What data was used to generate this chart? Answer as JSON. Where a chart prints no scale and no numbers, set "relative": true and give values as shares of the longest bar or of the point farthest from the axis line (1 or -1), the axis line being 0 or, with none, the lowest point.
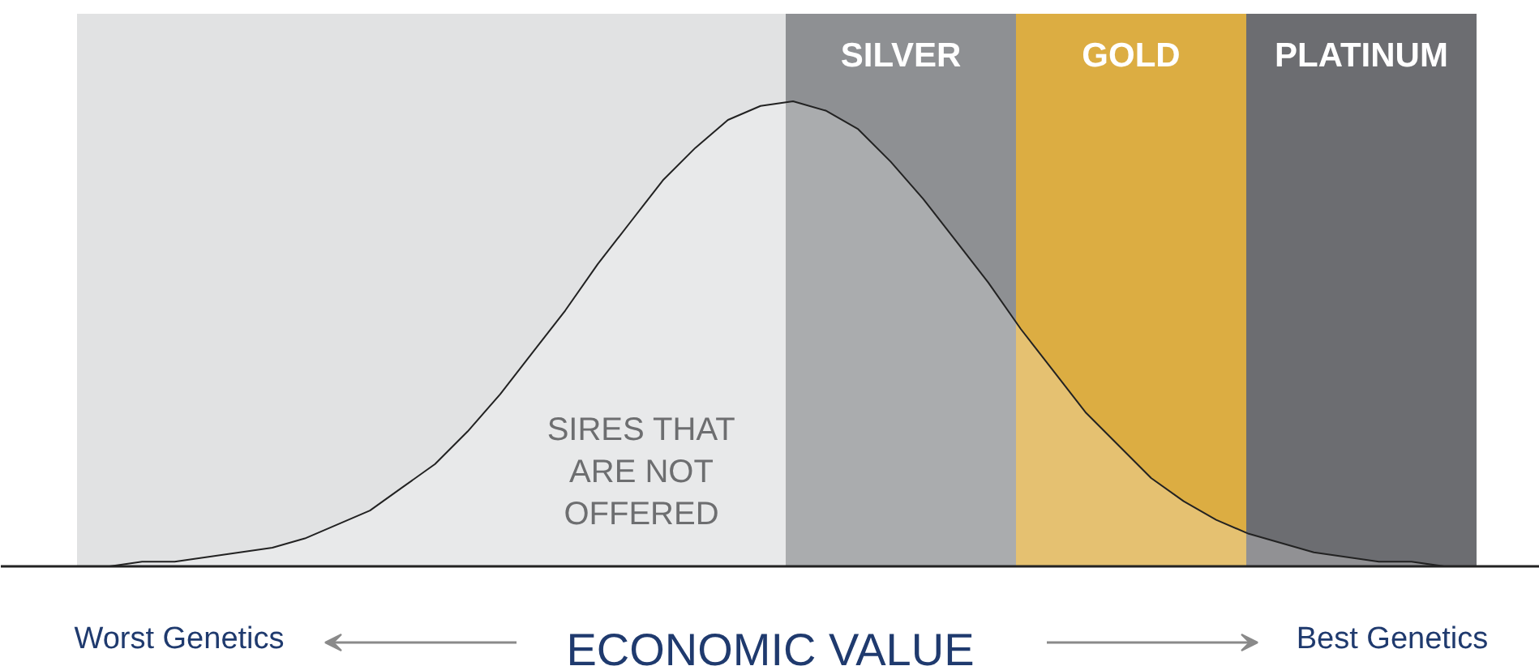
{
  "chart_data": {
    "type": "area",
    "relative": true,
    "xlabel": "ECONOMIC VALUE",
    "categories": [
      null,
      null,
      null,
      null,
      null,
      null,
      null,
      null,
      null,
      null,
      null,
      null,
      null,
      null,
      null,
      null,
      null,
      null,
      null,
      null,
      null,
      null,
      null,
      null,
      null,
      null,
      null,
      null,
      null,
      null,
      null,
      null,
      null,
      null,
      null,
      null,
      null,
      null,
      null,
      null,
      null,
      null,
      null,
      null
    ],
    "series": [
      {
        "color": "#222222",
        "values": [
          0.0,
          0.0,
          0.01,
          0.01,
          0.02,
          0.03,
          0.04,
          0.06,
          0.09,
          0.12,
          0.17,
          0.22,
          0.29,
          0.37,
          0.46,
          0.55,
          0.65,
          0.74,
          0.83,
          0.9,
          0.96,
          0.99,
          1.0,
          0.98,
          0.94,
          0.87,
          0.79,
          0.7,
          0.61,
          0.51,
          0.42,
          0.33,
          0.26,
          0.19,
          0.14,
          0.1,
          0.07,
          0.05,
          0.03,
          0.02,
          0.01,
          0.01,
          0.0,
          0.0
        ]
      }
    ],
    "annotations": [
      "SILVER",
      "GOLD",
      "PLATINUM",
      "SIRES THAT\nARE NOT\nOFFERED",
      "Worst Genetics",
      "Best Genetics"
    ],
    "grid": false
  }
}
